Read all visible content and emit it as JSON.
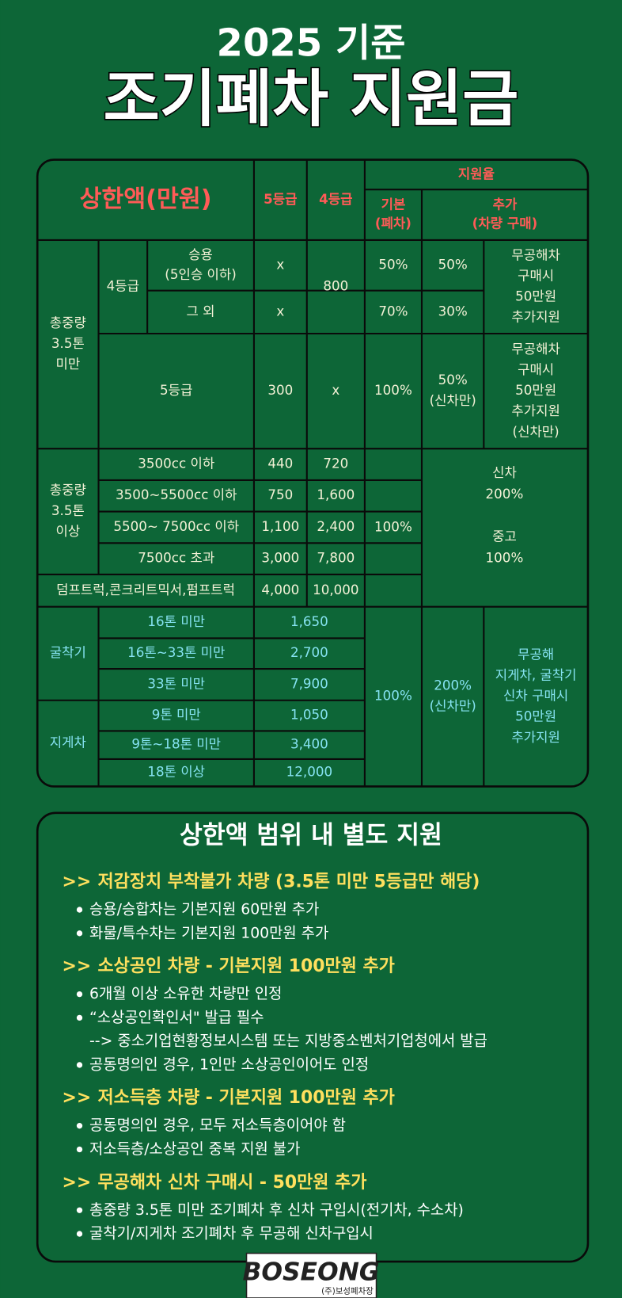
{
  "header": {
    "subtitle": "2025 기준",
    "title": "조기폐차 지원금"
  },
  "table": {
    "head": {
      "limit": "상한액(만원)",
      "grade5": "5등급",
      "grade4": "4등급",
      "rate": "지원율",
      "basic": [
        "기본",
        "(폐차)"
      ],
      "extra": [
        "추가",
        "(차량 구매)"
      ]
    },
    "light": {
      "group": [
        "총중량",
        "3.5톤",
        "미만"
      ],
      "grade4": "4등급",
      "rows": [
        {
          "type": [
            "승용",
            "(5인승 이하)"
          ],
          "grade5": "x",
          "basic": "50%",
          "extra": "50%"
        },
        {
          "type": [
            "그 외"
          ],
          "grade5": "x",
          "basic": "70%",
          "extra": "30%"
        }
      ],
      "grade4_limit": "800",
      "grade4_note": [
        "무공해차",
        "구매시",
        "50만원",
        "추가지원"
      ],
      "grade5_row": {
        "label": "5등급",
        "grade5": "300",
        "grade4": "x",
        "basic": "100%",
        "extra": [
          "50%",
          "(신차만)"
        ],
        "note": [
          "무공해차",
          "구매시",
          "50만원",
          "추가지원",
          "(신차만)"
        ]
      }
    },
    "heavy": {
      "group": [
        "총중량",
        "3.5톤",
        "이상"
      ],
      "rows": [
        [
          "3500cc 이하",
          "440",
          "720"
        ],
        [
          "3500~5500cc 이하",
          "750",
          "1,600"
        ],
        [
          "5500~ 7500cc 이하",
          "1,100",
          "2,400"
        ],
        [
          "7500cc 초과",
          "3,000",
          "7,800"
        ]
      ],
      "special": [
        "덤프트럭,콘크리트믹서,펌프트럭",
        "4,000",
        "10,000"
      ],
      "basic": "100%",
      "extra": [
        "신차",
        "200%",
        "중고",
        "100%"
      ]
    },
    "machinery": {
      "excavator": "굴착기",
      "forklift": "지게차",
      "excavator_rows": [
        [
          "16톤 미만",
          "1,650"
        ],
        [
          "16톤~33톤 미만",
          "2,700"
        ],
        [
          "33톤 미만",
          "7,900"
        ]
      ],
      "forklift_rows": [
        [
          "9톤 미만",
          "1,050"
        ],
        [
          "9톤~18톤 미만",
          "3,400"
        ],
        [
          "18톤 이상",
          "12,000"
        ]
      ],
      "basic": "100%",
      "extra": [
        "200%",
        "(신차만)"
      ],
      "note": [
        "무공해",
        "지게차, 굴착기",
        "신차 구매시",
        "50만원",
        "추가지원"
      ]
    }
  },
  "extra_support": {
    "title": "상한액 범위 내 별도 지원",
    "marker": ">>",
    "sections": [
      {
        "heading": "저감장치 부착불가 차량 (3.5톤 미만 5등급만 해당)",
        "items": [
          [
            "승용/승합차는 기본지원 60만원 추가"
          ],
          [
            "화물/특수차는 기본지원 100만원 추가"
          ]
        ]
      },
      {
        "heading": "소상공인 차량 - 기본지원 100만원 추가",
        "items": [
          [
            "6개월 이상 소유한 차량만 인정"
          ],
          [
            "“소상공인확인서\" 발급 필수",
            "--> 중소기업현황정보시스템 또는 지방중소벤처기업청에서 발급"
          ],
          [
            "공동명의인 경우, 1인만 소상공인이어도 인정"
          ]
        ]
      },
      {
        "heading": "저소득층 차량 - 기본지원 100만원 추가",
        "items": [
          [
            "공동명의인 경우, 모두 저소득층이어야 함"
          ],
          [
            "저소득층/소상공인 중복 지원 불가"
          ]
        ]
      },
      {
        "heading": "무공해차 신차 구매시 - 50만원 추가",
        "items": [
          [
            "총중량 3.5톤 미만 조기폐차 후 신차 구입시(전기차, 수소차)"
          ],
          [
            "굴착기/지게차 조기폐차 후 무공해 신차구입시"
          ]
        ]
      }
    ]
  },
  "logo": {
    "name": "BOSEONG",
    "company": "(주)보성폐차장"
  }
}
